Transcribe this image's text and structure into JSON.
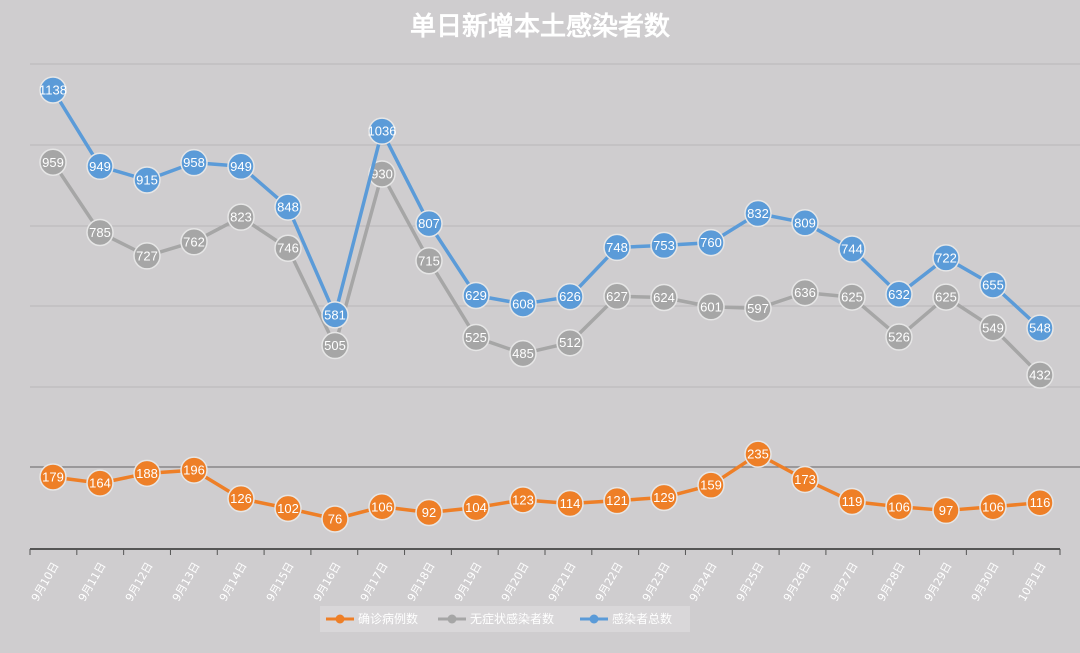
{
  "chart_data": {
    "type": "line",
    "title": "单日新增本土感染者数",
    "categories": [
      "9月10日",
      "9月11日",
      "9月12日",
      "9月13日",
      "9月14日",
      "9月15日",
      "9月16日",
      "9月17日",
      "9月18日",
      "9月19日",
      "9月20日",
      "9月21日",
      "9月22日",
      "9月23日",
      "9月24日",
      "9月25日",
      "9月26日",
      "9月27日",
      "9月28日",
      "9月29日",
      "9月30日",
      "10月1日"
    ],
    "series": [
      {
        "name": "确诊病例数",
        "color": "#ee7f27",
        "values": [
          179,
          164,
          188,
          196,
          126,
          102,
          76,
          106,
          92,
          104,
          123,
          114,
          121,
          129,
          159,
          235,
          173,
          119,
          106,
          97,
          106,
          116
        ]
      },
      {
        "name": "无症状感染者数",
        "color": "#a6a6a6",
        "values": [
          959,
          785,
          727,
          762,
          823,
          746,
          505,
          930,
          715,
          525,
          485,
          512,
          627,
          624,
          601,
          597,
          636,
          625,
          526,
          625,
          549,
          432
        ]
      },
      {
        "name": "感染者总数",
        "color": "#5b9bd8",
        "values": [
          1138,
          949,
          915,
          958,
          949,
          848,
          581,
          1036,
          807,
          629,
          608,
          626,
          748,
          753,
          760,
          832,
          809,
          744,
          632,
          722,
          655,
          548
        ]
      }
    ],
    "grid": true,
    "legend": "bottom",
    "data_labels": true
  }
}
